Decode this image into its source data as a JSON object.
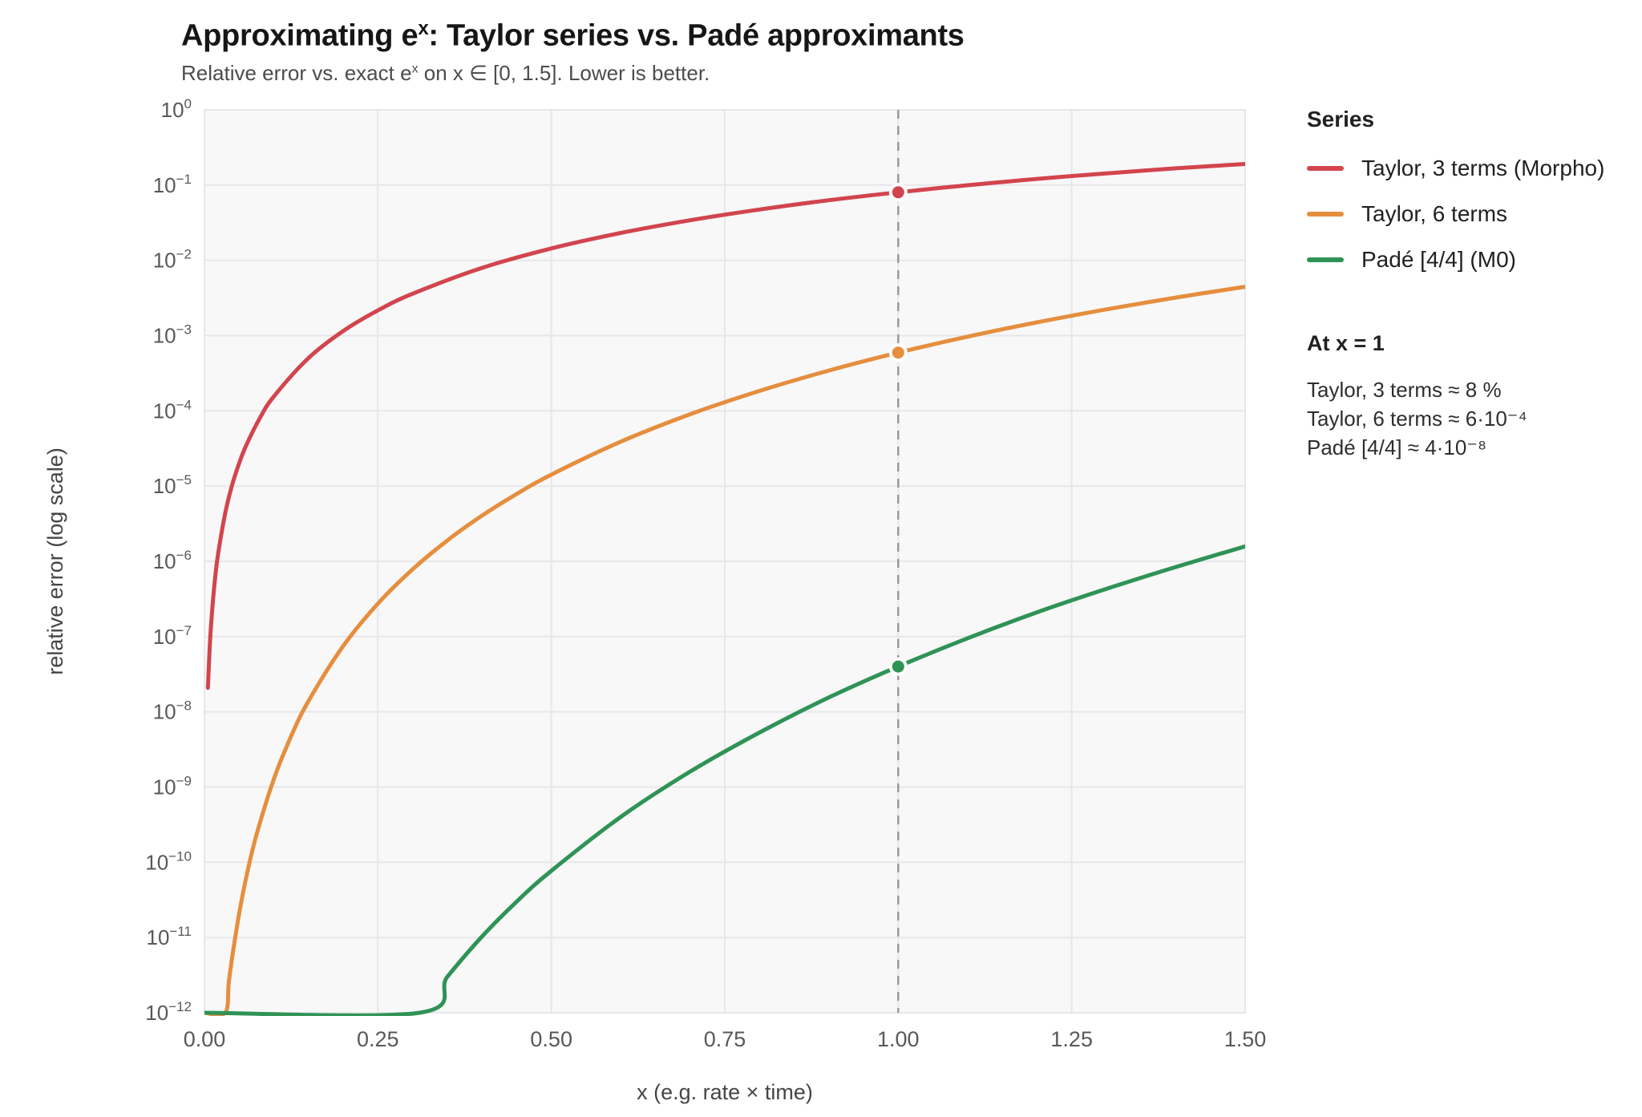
{
  "header": {
    "title": {
      "pre": "Approximating e",
      "sup": "x",
      "post": ": Taylor series vs. Padé approximants"
    },
    "subtitle": {
      "pre": "Relative error vs. exact e",
      "sup": "x",
      "post": " on x ∈ [0, 1.5]. Lower is better."
    }
  },
  "legend": {
    "title": "Series"
  },
  "annotation": {
    "title": "At x = 1",
    "lines": [
      "Taylor, 3 terms ≈ 8 %",
      "Taylor, 6 terms ≈ 6·10⁻⁴",
      "Padé [4/4] ≈ 4·10⁻⁸"
    ]
  },
  "chart_data": {
    "type": "line",
    "x_label": "x (e.g. rate × time)",
    "y_label": "relative error (log scale)",
    "x_domain": [
      0,
      1.5
    ],
    "y_log_range": [
      1e-12,
      1
    ],
    "y_tick_exponents": [
      0,
      -1,
      -2,
      -3,
      -4,
      -5,
      -6,
      -7,
      -8,
      -9,
      -10,
      -11,
      -12
    ],
    "x_ticks": [
      {
        "v": 0.0,
        "label": "0.00"
      },
      {
        "v": 0.25,
        "label": "0.25"
      },
      {
        "v": 0.5,
        "label": "0.50"
      },
      {
        "v": 0.75,
        "label": "0.75"
      },
      {
        "v": 1.0,
        "label": "1.00"
      },
      {
        "v": 1.25,
        "label": "1.25"
      },
      {
        "v": 1.5,
        "label": "1.50"
      }
    ],
    "grid": true,
    "legend_position": "right",
    "guide_x": 1.0,
    "panel_color": "#f8f8f8",
    "grid_color": "#e7e7ea",
    "guide_color": "#98989e",
    "series": [
      {
        "name": "Taylor, 3 terms (Morpho)",
        "color": "#d2454e",
        "marker_at_guide": 0.0803,
        "points": [
          [
            0.005,
            2.08e-08
          ],
          [
            0.0075,
            7e-08
          ],
          [
            0.01,
            1.65e-07
          ],
          [
            0.015,
            5.56e-07
          ],
          [
            0.02,
            1.31e-06
          ],
          [
            0.03,
            4.4e-06
          ],
          [
            0.04,
            1.04e-05
          ],
          [
            0.05,
            2.01e-05
          ],
          [
            0.06,
            3.44e-05
          ],
          [
            0.08,
            8.04e-05
          ],
          [
            0.1,
            0.000155
          ],
          [
            0.15,
            0.000503
          ],
          [
            0.2,
            0.00115
          ],
          [
            0.25,
            0.00216
          ],
          [
            0.3,
            0.0036
          ],
          [
            0.4,
            0.00793
          ],
          [
            0.5,
            0.0144
          ],
          [
            0.6,
            0.0231
          ],
          [
            0.7,
            0.0341
          ],
          [
            0.8,
            0.0474
          ],
          [
            0.9,
            0.0629
          ],
          [
            1.0,
            0.0803
          ],
          [
            1.1,
            0.0996
          ],
          [
            1.2,
            0.121
          ],
          [
            1.3,
            0.143
          ],
          [
            1.4,
            0.167
          ],
          [
            1.5,
            0.191
          ]
        ]
      },
      {
        "name": "Taylor, 6 terms",
        "color": "#e58e3e",
        "marker_at_guide": 0.000594,
        "points": [
          [
            0.0,
            1e-12
          ],
          [
            0.03,
            1e-12
          ],
          [
            0.035,
            2.5e-12
          ],
          [
            0.04,
            5.5e-12
          ],
          [
            0.05,
            2.08e-11
          ],
          [
            0.06,
            6.15e-11
          ],
          [
            0.075,
            2.32e-10
          ],
          [
            0.1,
            1.27e-09
          ],
          [
            0.125,
            4.76e-09
          ],
          [
            0.15,
            1.39e-08
          ],
          [
            0.2,
            7.49e-08
          ],
          [
            0.25,
            2.74e-07
          ],
          [
            0.3,
            7.83e-07
          ],
          [
            0.35,
            1.89e-06
          ],
          [
            0.4,
            4.04e-06
          ],
          [
            0.45,
            7.85e-06
          ],
          [
            0.5,
            1.42e-05
          ],
          [
            0.6,
            3.89e-05
          ],
          [
            0.7,
            9e-05
          ],
          [
            0.8,
            0.000184
          ],
          [
            0.9,
            0.000343
          ],
          [
            1.0,
            0.000594
          ],
          [
            1.1,
            0.000968
          ],
          [
            1.2,
            0.0015
          ],
          [
            1.3,
            0.00223
          ],
          [
            1.4,
            0.0032
          ],
          [
            1.5,
            0.00446
          ]
        ]
      },
      {
        "name": "Padé [4/4] (M0)",
        "color": "#2f9355",
        "marker_at_guide": 4e-08,
        "points": [
          [
            0.0,
            1e-12
          ],
          [
            0.31,
            1e-12
          ],
          [
            0.35,
            3e-12
          ],
          [
            0.4,
            1.03e-11
          ],
          [
            0.45,
            3e-11
          ],
          [
            0.5,
            7.7e-11
          ],
          [
            0.6,
            4e-10
          ],
          [
            0.7,
            1.6e-09
          ],
          [
            0.8,
            5.3e-09
          ],
          [
            0.9,
            1.55e-08
          ],
          [
            1.0,
            4e-08
          ],
          [
            1.1,
            9.5e-08
          ],
          [
            1.2,
            2.1e-07
          ],
          [
            1.3,
            4.3e-07
          ],
          [
            1.4,
            8.4e-07
          ],
          [
            1.5,
            1.58e-06
          ]
        ]
      }
    ]
  }
}
